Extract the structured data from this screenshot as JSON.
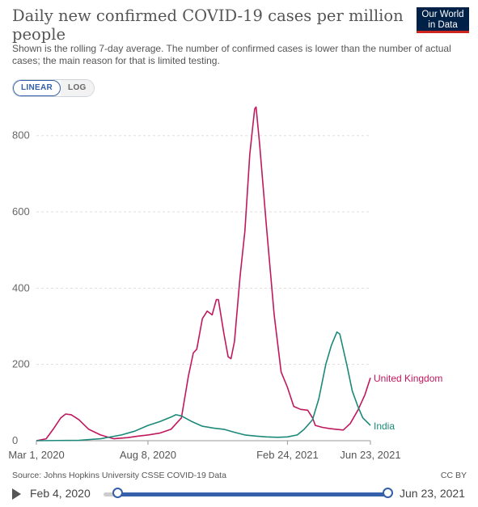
{
  "title": "Daily new confirmed COVID-19 cases per million people",
  "subtitle": "Shown is the rolling 7-day average. The number of confirmed cases is lower than the number of actual cases; the main reason for that is limited testing.",
  "logo": {
    "line1": "Our World",
    "line2": "in Data",
    "colors": {
      "bg": "#002147",
      "accent": "#ce261e"
    }
  },
  "scale_toggle": {
    "linear_label": "LINEAR",
    "log_label": "LOG",
    "selected": "LINEAR"
  },
  "footer": {
    "source": "Source: Johns Hopkins University CSSE COVID-19 Data",
    "license": "CC BY"
  },
  "timeline": {
    "start_label": "Feb 4, 2020",
    "end_label": "Jun 23, 2021"
  },
  "chart_data": {
    "type": "line",
    "title": "Daily new confirmed COVID-19 cases per million people",
    "xlabel": "",
    "ylabel": "",
    "x_ticks": [
      "Mar 1, 2020",
      "Aug 8, 2020",
      "Feb 24, 2021",
      "Jun 23, 2021"
    ],
    "y_ticks": [
      0,
      200,
      400,
      600,
      800
    ],
    "ylim": [
      0,
      880
    ],
    "xlim": [
      "2020-03-01",
      "2021-06-23"
    ],
    "grid": "horizontal dashed",
    "legend": "inline labels at line ends",
    "series": [
      {
        "name": "United Kingdom",
        "color": "#c0185f",
        "points": [
          [
            "2020-03-01",
            0
          ],
          [
            "2020-03-15",
            5
          ],
          [
            "2020-03-25",
            30
          ],
          [
            "2020-04-05",
            60
          ],
          [
            "2020-04-12",
            70
          ],
          [
            "2020-04-20",
            68
          ],
          [
            "2020-05-01",
            55
          ],
          [
            "2020-05-15",
            30
          ],
          [
            "2020-06-01",
            15
          ],
          [
            "2020-06-20",
            5
          ],
          [
            "2020-07-10",
            8
          ],
          [
            "2020-07-25",
            12
          ],
          [
            "2020-08-08",
            15
          ],
          [
            "2020-08-25",
            20
          ],
          [
            "2020-09-10",
            30
          ],
          [
            "2020-09-25",
            60
          ],
          [
            "2020-10-05",
            170
          ],
          [
            "2020-10-12",
            230
          ],
          [
            "2020-10-17",
            240
          ],
          [
            "2020-10-25",
            320
          ],
          [
            "2020-11-01",
            340
          ],
          [
            "2020-11-08",
            330
          ],
          [
            "2020-11-14",
            370
          ],
          [
            "2020-11-17",
            370
          ],
          [
            "2020-11-25",
            280
          ],
          [
            "2020-12-01",
            220
          ],
          [
            "2020-12-05",
            215
          ],
          [
            "2020-12-10",
            260
          ],
          [
            "2020-12-18",
            430
          ],
          [
            "2020-12-25",
            550
          ],
          [
            "2021-01-01",
            750
          ],
          [
            "2021-01-05",
            820
          ],
          [
            "2021-01-08",
            870
          ],
          [
            "2021-01-10",
            875
          ],
          [
            "2021-01-15",
            780
          ],
          [
            "2021-01-25",
            560
          ],
          [
            "2021-02-05",
            330
          ],
          [
            "2021-02-15",
            180
          ],
          [
            "2021-02-24",
            140
          ],
          [
            "2021-03-05",
            90
          ],
          [
            "2021-03-15",
            82
          ],
          [
            "2021-03-25",
            80
          ],
          [
            "2021-04-01",
            60
          ],
          [
            "2021-04-05",
            40
          ],
          [
            "2021-04-15",
            35
          ],
          [
            "2021-04-25",
            32
          ],
          [
            "2021-05-05",
            30
          ],
          [
            "2021-05-15",
            28
          ],
          [
            "2021-05-25",
            45
          ],
          [
            "2021-06-05",
            80
          ],
          [
            "2021-06-15",
            120
          ],
          [
            "2021-06-23",
            165
          ]
        ]
      },
      {
        "name": "India",
        "color": "#1b8979",
        "points": [
          [
            "2020-03-01",
            0
          ],
          [
            "2020-05-01",
            1
          ],
          [
            "2020-06-01",
            5
          ],
          [
            "2020-07-01",
            15
          ],
          [
            "2020-07-20",
            25
          ],
          [
            "2020-08-08",
            40
          ],
          [
            "2020-08-25",
            50
          ],
          [
            "2020-09-10",
            62
          ],
          [
            "2020-09-17",
            68
          ],
          [
            "2020-09-25",
            65
          ],
          [
            "2020-10-10",
            50
          ],
          [
            "2020-10-25",
            38
          ],
          [
            "2020-11-10",
            33
          ],
          [
            "2020-11-25",
            30
          ],
          [
            "2020-12-10",
            22
          ],
          [
            "2020-12-25",
            15
          ],
          [
            "2021-01-10",
            12
          ],
          [
            "2021-01-25",
            10
          ],
          [
            "2021-02-10",
            9
          ],
          [
            "2021-02-24",
            10
          ],
          [
            "2021-03-10",
            15
          ],
          [
            "2021-03-20",
            30
          ],
          [
            "2021-04-01",
            55
          ],
          [
            "2021-04-10",
            110
          ],
          [
            "2021-04-20",
            200
          ],
          [
            "2021-04-28",
            250
          ],
          [
            "2021-05-06",
            285
          ],
          [
            "2021-05-10",
            280
          ],
          [
            "2021-05-20",
            200
          ],
          [
            "2021-05-28",
            130
          ],
          [
            "2021-06-05",
            90
          ],
          [
            "2021-06-12",
            60
          ],
          [
            "2021-06-23",
            40
          ]
        ]
      }
    ]
  }
}
